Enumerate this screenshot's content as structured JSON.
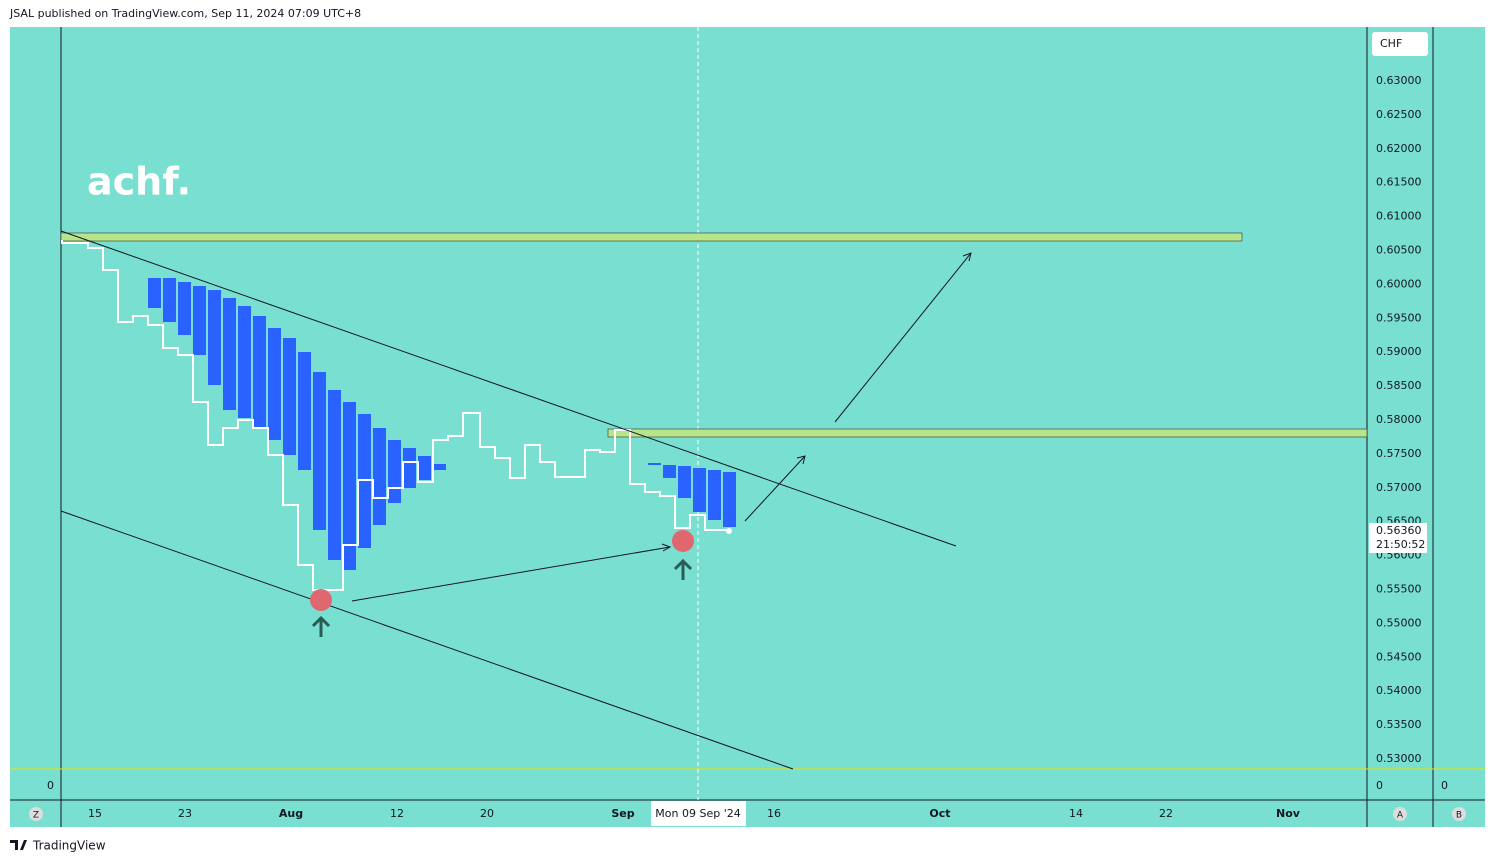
{
  "header": {
    "publisher": "JSAL published on TradingView.com, Sep 11, 2024 07:09 UTC+8"
  },
  "watermark": "achf.",
  "price_axis": {
    "currency": "CHF",
    "ticks": [
      "0.63000",
      "0.62500",
      "0.62000",
      "0.61500",
      "0.61000",
      "0.60500",
      "0.60000",
      "0.59500",
      "0.59000",
      "0.58500",
      "0.58000",
      "0.57500",
      "0.57000",
      "0.56500",
      "0.56000",
      "0.55500",
      "0.55000",
      "0.54500",
      "0.54000",
      "0.53500",
      "0.53000"
    ]
  },
  "current_price": {
    "price": "0.56360",
    "countdown": "21:50:52"
  },
  "time_axis": {
    "labels": [
      "15",
      "23",
      "Aug",
      "12",
      "20",
      "Sep",
      "16",
      "Oct",
      "14",
      "22",
      "Nov"
    ],
    "crosshair": "Mon 09 Sep '24"
  },
  "panes": {
    "left_zero": "0",
    "axis_zero": "0",
    "right_zero": "0"
  },
  "buttons": {
    "left": "Z",
    "axis": "A",
    "right": "B"
  },
  "footer": {
    "brand": "TradingView"
  }
}
